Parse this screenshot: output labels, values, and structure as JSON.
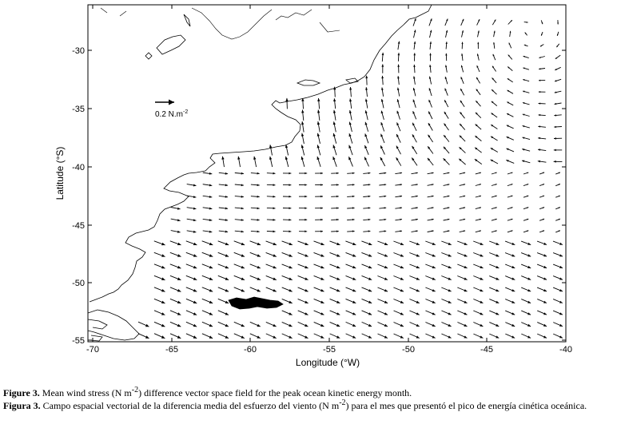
{
  "chart_data": {
    "type": "vector-field",
    "xlabel": "Longitude (°W)",
    "ylabel": "Latitude (°S)",
    "xlim": [
      -70,
      -40
    ],
    "ylim": [
      -55,
      -26
    ],
    "xticks": [
      "-70",
      "-65",
      "-60",
      "-55",
      "-50",
      "-45",
      "-40"
    ],
    "yticks": [
      "-30",
      "-35",
      "-40",
      "-45",
      "-50",
      "-55"
    ],
    "xtick_values": [
      -70,
      -65,
      -60,
      -55,
      -50,
      -45,
      -40
    ],
    "ytick_values": [
      -30,
      -35,
      -40,
      -45,
      -50,
      -55
    ],
    "reference_vector": {
      "label": "0.2 N.m",
      "exponent": "-2",
      "magnitude": 0.2
    },
    "grid": false
  },
  "caption": {
    "en_bold": "Figure 3.",
    "en_text_1": " Mean wind stress (N m",
    "en_sup": "-2",
    "en_text_2": ") difference vector space field for the peak ocean kinetic energy month.",
    "es_bold": "Figura 3.",
    "es_text_1": " Campo espacial vectorial de la diferencia media del esfuerzo del viento (N m",
    "es_sup": "-2",
    "es_text_2": ") para el mes que presentó el pico de energía cinética oceánica."
  }
}
